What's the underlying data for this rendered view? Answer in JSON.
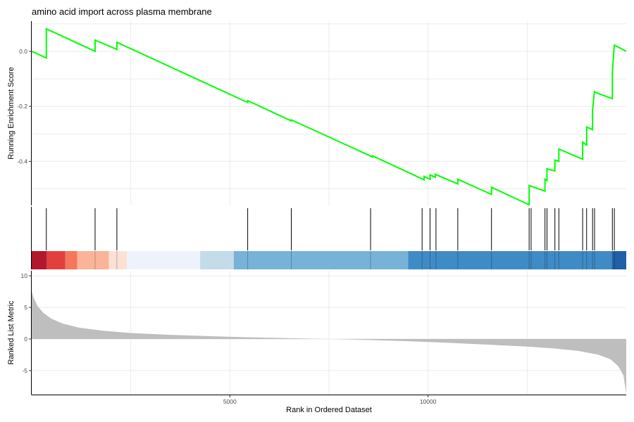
{
  "chart_data": {
    "type": "line",
    "title": "amino acid import across plasma membrane",
    "xlabel": "Rank in Ordered Dataset",
    "xlim": [
      1,
      15000
    ],
    "x_ticks": [
      5000,
      10000
    ],
    "x_tick_labels": [
      "5000",
      "10000"
    ],
    "running_es": {
      "ylabel": "Running Enrichment Score",
      "ylim": [
        -0.56,
        0.11
      ],
      "y_ticks": [
        0.0,
        -0.2,
        -0.4
      ],
      "y_tick_labels": [
        "0.0",
        "-0.2",
        "-0.4"
      ],
      "line_color": "#00ff00",
      "x": [
        1,
        370,
        370,
        1600,
        1600,
        2150,
        2150,
        5450,
        5450,
        6550,
        6550,
        8600,
        8600,
        9900,
        9900,
        10050,
        10050,
        10180,
        10180,
        10750,
        10750,
        11600,
        11600,
        12550,
        12550,
        12950,
        12950,
        13000,
        13000,
        13200,
        13200,
        13300,
        13300,
        13900,
        13900,
        14000,
        14000,
        14150,
        14150,
        14200,
        14200,
        14650,
        14650,
        14700,
        14700,
        15000
      ],
      "y": [
        0.0,
        -0.024,
        0.082,
        0.0,
        0.041,
        0.007,
        0.033,
        -0.186,
        -0.179,
        -0.253,
        -0.249,
        -0.384,
        -0.38,
        -0.467,
        -0.455,
        -0.465,
        -0.449,
        -0.458,
        -0.447,
        -0.482,
        -0.465,
        -0.52,
        -0.494,
        -0.558,
        -0.488,
        -0.508,
        -0.465,
        -0.47,
        -0.427,
        -0.435,
        -0.395,
        -0.4,
        -0.355,
        -0.392,
        -0.33,
        -0.341,
        -0.275,
        -0.285,
        -0.213,
        -0.143,
        -0.148,
        -0.172,
        -0.075,
        0.025,
        0.023,
        0.0
      ]
    },
    "hits": [
      370,
      1600,
      2150,
      5450,
      6550,
      8550,
      9850,
      10050,
      10200,
      10750,
      11600,
      12550,
      12600,
      12950,
      13000,
      13200,
      13300,
      13900,
      14000,
      14150,
      14200,
      14650,
      14700
    ],
    "hit_color": "#000000",
    "color_bands": [
      {
        "from": 1,
        "to": 370,
        "color": "#b2182b"
      },
      {
        "from": 370,
        "to": 850,
        "color": "#e2403c"
      },
      {
        "from": 850,
        "to": 1150,
        "color": "#f4765d"
      },
      {
        "from": 1150,
        "to": 1950,
        "color": "#fbb49a"
      },
      {
        "from": 1950,
        "to": 2400,
        "color": "#fde0d4"
      },
      {
        "from": 2400,
        "to": 4250,
        "color": "#eef3fb"
      },
      {
        "from": 4250,
        "to": 5100,
        "color": "#c4dbea"
      },
      {
        "from": 5100,
        "to": 9500,
        "color": "#77b3d8"
      },
      {
        "from": 9500,
        "to": 14650,
        "color": "#3f8bc5"
      },
      {
        "from": 14650,
        "to": 15000,
        "color": "#1f60a8"
      }
    ],
    "ranked_metric": {
      "ylabel": "Ranked List Metric",
      "ylim": [
        -8.8,
        10.8
      ],
      "y_ticks": [
        10,
        5,
        0,
        -5
      ],
      "y_tick_labels": [
        "10",
        "5",
        "0",
        "-5"
      ],
      "fill_color": "#bebebe",
      "x": [
        1,
        50,
        150,
        300,
        500,
        800,
        1200,
        1800,
        2500,
        3500,
        5000,
        6500,
        7500,
        8500,
        9500,
        10500,
        11500,
        12500,
        13200,
        13800,
        14300,
        14600,
        14800,
        14930,
        15000
      ],
      "y": [
        7.6,
        6.5,
        5.2,
        4.1,
        3.2,
        2.4,
        1.8,
        1.3,
        0.95,
        0.65,
        0.35,
        0.12,
        0.0,
        -0.15,
        -0.35,
        -0.6,
        -0.9,
        -1.2,
        -1.5,
        -1.9,
        -2.5,
        -3.2,
        -4.3,
        -5.8,
        -8.6
      ]
    }
  }
}
